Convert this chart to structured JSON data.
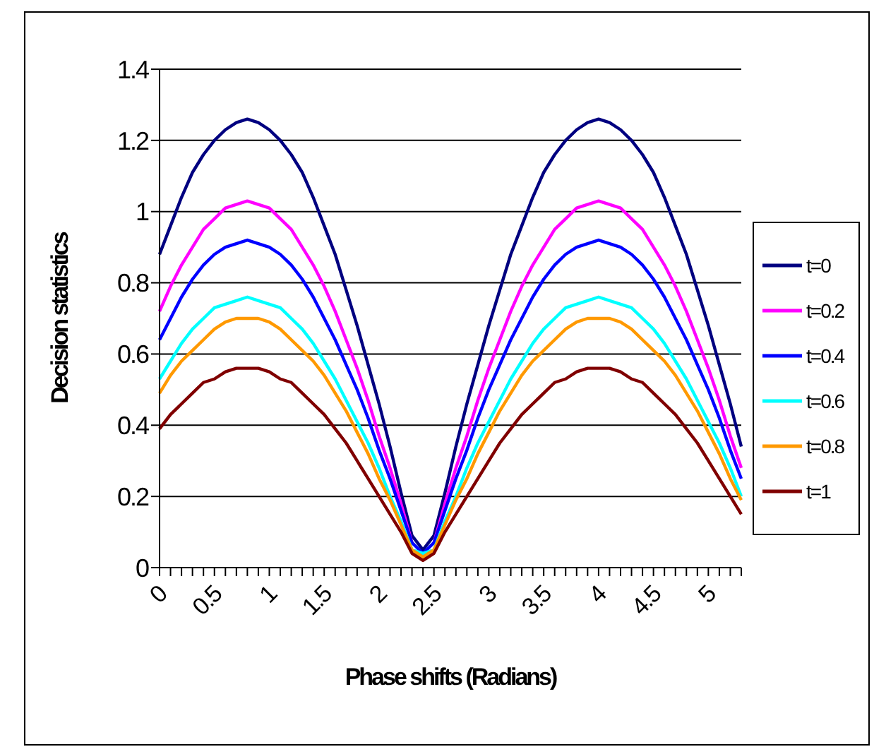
{
  "chart_data": {
    "type": "line",
    "xlabel": "Phase shifts (Radians)",
    "ylabel": "Decision statistics",
    "categories": [
      "0",
      null,
      null,
      null,
      null,
      "0.5",
      null,
      null,
      null,
      null,
      "1",
      null,
      null,
      null,
      null,
      "1.5",
      null,
      null,
      null,
      null,
      "2",
      null,
      null,
      null,
      null,
      "2.5",
      null,
      null,
      null,
      null,
      "3",
      null,
      null,
      null,
      null,
      "3.5",
      null,
      null,
      null,
      null,
      "4",
      null,
      null,
      null,
      null,
      "4.5",
      null,
      null,
      null,
      null,
      "5",
      null,
      null,
      null
    ],
    "series": [
      {
        "name": "t=0",
        "color": "#000080",
        "values": [
          0.88,
          0.96,
          1.04,
          1.11,
          1.16,
          1.2,
          1.23,
          1.25,
          1.26,
          1.25,
          1.23,
          1.2,
          1.16,
          1.11,
          1.04,
          0.96,
          0.88,
          0.78,
          0.68,
          0.57,
          0.46,
          0.34,
          0.21,
          0.09,
          0.05,
          0.09,
          0.21,
          0.34,
          0.46,
          0.57,
          0.68,
          0.78,
          0.88,
          0.96,
          1.04,
          1.11,
          1.16,
          1.2,
          1.23,
          1.25,
          1.26,
          1.25,
          1.23,
          1.2,
          1.16,
          1.11,
          1.04,
          0.96,
          0.88,
          0.78,
          0.68,
          0.57,
          0.46,
          0.34
        ]
      },
      {
        "name": "t=0.2",
        "color": "#ff00ff",
        "values": [
          0.72,
          0.79,
          0.85,
          0.9,
          0.95,
          0.98,
          1.01,
          1.02,
          1.03,
          1.02,
          1.01,
          0.98,
          0.95,
          0.9,
          0.85,
          0.79,
          0.72,
          0.64,
          0.56,
          0.47,
          0.37,
          0.28,
          0.18,
          0.07,
          null,
          0.07,
          0.18,
          0.28,
          0.37,
          0.47,
          0.56,
          0.64,
          0.72,
          0.79,
          0.85,
          0.9,
          0.95,
          0.98,
          1.01,
          1.02,
          1.03,
          1.02,
          1.01,
          0.98,
          0.95,
          0.9,
          0.85,
          0.79,
          0.72,
          0.64,
          0.56,
          0.47,
          0.37,
          0.28
        ]
      },
      {
        "name": "t=0.4",
        "color": "#0000ff",
        "values": [
          0.64,
          0.7,
          0.76,
          0.81,
          0.85,
          0.88,
          0.9,
          0.91,
          0.92,
          0.91,
          0.9,
          0.88,
          0.85,
          0.81,
          0.76,
          0.7,
          0.64,
          0.57,
          0.5,
          0.42,
          0.33,
          0.25,
          0.16,
          0.07,
          0.04,
          0.07,
          0.16,
          0.25,
          0.33,
          0.42,
          0.5,
          0.57,
          0.64,
          0.7,
          0.76,
          0.81,
          0.85,
          0.88,
          0.9,
          0.91,
          0.92,
          0.91,
          0.9,
          0.88,
          0.85,
          0.81,
          0.76,
          0.7,
          0.64,
          0.57,
          0.5,
          0.42,
          0.33,
          0.25
        ]
      },
      {
        "name": "t=0.6",
        "color": "#00ffff",
        "values": [
          0.53,
          0.58,
          0.63,
          0.67,
          0.7,
          0.73,
          0.74,
          0.75,
          0.76,
          0.75,
          0.74,
          0.73,
          0.7,
          0.67,
          0.63,
          0.58,
          0.53,
          0.47,
          0.41,
          0.35,
          0.28,
          0.2,
          0.13,
          0.05,
          0.04,
          0.05,
          0.13,
          0.2,
          0.28,
          0.35,
          0.41,
          0.47,
          0.53,
          0.58,
          0.63,
          0.67,
          0.7,
          0.73,
          0.74,
          0.75,
          0.76,
          0.75,
          0.74,
          0.73,
          0.7,
          0.67,
          0.63,
          0.58,
          0.53,
          0.47,
          0.41,
          0.35,
          0.28,
          0.2
        ]
      },
      {
        "name": "t=0.8",
        "color": "#ff9900",
        "values": [
          0.49,
          0.54,
          0.58,
          0.61,
          0.64,
          0.67,
          0.69,
          0.7,
          0.7,
          0.7,
          0.69,
          0.67,
          0.64,
          0.61,
          0.58,
          0.54,
          0.49,
          0.44,
          0.38,
          0.32,
          0.25,
          0.19,
          0.12,
          0.05,
          0.03,
          0.05,
          0.12,
          0.19,
          0.25,
          0.32,
          0.38,
          0.44,
          0.49,
          0.54,
          0.58,
          0.61,
          0.64,
          0.67,
          0.69,
          0.7,
          0.7,
          0.7,
          0.69,
          0.67,
          0.64,
          0.61,
          0.58,
          0.54,
          0.49,
          0.44,
          0.38,
          0.32,
          0.25,
          0.19
        ]
      },
      {
        "name": "t=1",
        "color": "#800000",
        "values": [
          0.39,
          0.43,
          0.46,
          0.49,
          0.52,
          0.53,
          0.55,
          0.56,
          0.56,
          0.56,
          0.55,
          0.53,
          0.52,
          0.49,
          0.46,
          0.43,
          0.39,
          0.35,
          0.3,
          0.25,
          0.2,
          0.15,
          0.1,
          0.04,
          0.02,
          0.04,
          0.1,
          0.15,
          0.2,
          0.25,
          0.3,
          0.35,
          0.39,
          0.43,
          0.46,
          0.49,
          0.52,
          0.53,
          0.55,
          0.56,
          0.56,
          0.56,
          0.55,
          0.53,
          0.52,
          0.49,
          0.46,
          0.43,
          0.39,
          0.35,
          0.3,
          0.25,
          0.2,
          0.15
        ]
      }
    ],
    "ylim": [
      0,
      1.4
    ],
    "yticks": [
      0,
      0.2,
      0.4,
      0.6,
      0.8,
      1,
      1.2,
      1.4
    ],
    "grid": "y",
    "legend": "right"
  }
}
